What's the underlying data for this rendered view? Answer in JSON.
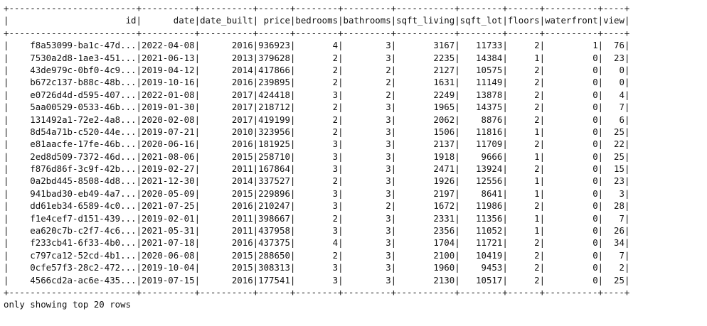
{
  "table": {
    "columns": [
      {
        "name": "id",
        "width": 24,
        "align": "right"
      },
      {
        "name": "date",
        "width": 10,
        "align": "right"
      },
      {
        "name": "date_built",
        "width": 10,
        "align": "right"
      },
      {
        "name": "price",
        "width": 6,
        "align": "right"
      },
      {
        "name": "bedrooms",
        "width": 8,
        "align": "right"
      },
      {
        "name": "bathrooms",
        "width": 9,
        "align": "right"
      },
      {
        "name": "sqft_living",
        "width": 11,
        "align": "right"
      },
      {
        "name": "sqft_lot",
        "width": 8,
        "align": "right"
      },
      {
        "name": "floors",
        "width": 6,
        "align": "right"
      },
      {
        "name": "waterfront",
        "width": 10,
        "align": "right"
      },
      {
        "name": "view",
        "width": 4,
        "align": "right"
      }
    ],
    "rows": [
      [
        "f8a53099-ba1c-47d...",
        "2022-04-08",
        "2016",
        "936923",
        "4",
        "3",
        "3167",
        "11733",
        "2",
        "1",
        "76"
      ],
      [
        "7530a2d8-1ae3-451...",
        "2021-06-13",
        "2013",
        "379628",
        "2",
        "3",
        "2235",
        "14384",
        "1",
        "0",
        "23"
      ],
      [
        "43de979c-0bf0-4c9...",
        "2019-04-12",
        "2014",
        "417866",
        "2",
        "2",
        "2127",
        "10575",
        "2",
        "0",
        "0"
      ],
      [
        "b672c137-b88c-48b...",
        "2019-10-16",
        "2016",
        "239895",
        "2",
        "2",
        "1631",
        "11149",
        "2",
        "0",
        "0"
      ],
      [
        "e0726d4d-d595-407...",
        "2022-01-08",
        "2017",
        "424418",
        "3",
        "2",
        "2249",
        "13878",
        "2",
        "0",
        "4"
      ],
      [
        "5aa00529-0533-46b...",
        "2019-01-30",
        "2017",
        "218712",
        "2",
        "3",
        "1965",
        "14375",
        "2",
        "0",
        "7"
      ],
      [
        "131492a1-72e2-4a8...",
        "2020-02-08",
        "2017",
        "419199",
        "2",
        "3",
        "2062",
        "8876",
        "2",
        "0",
        "6"
      ],
      [
        "8d54a71b-c520-44e...",
        "2019-07-21",
        "2010",
        "323956",
        "2",
        "3",
        "1506",
        "11816",
        "1",
        "0",
        "25"
      ],
      [
        "e81aacfe-17fe-46b...",
        "2020-06-16",
        "2016",
        "181925",
        "3",
        "3",
        "2137",
        "11709",
        "2",
        "0",
        "22"
      ],
      [
        "2ed8d509-7372-46d...",
        "2021-08-06",
        "2015",
        "258710",
        "3",
        "3",
        "1918",
        "9666",
        "1",
        "0",
        "25"
      ],
      [
        "f876d86f-3c9f-42b...",
        "2019-02-27",
        "2011",
        "167864",
        "3",
        "3",
        "2471",
        "13924",
        "2",
        "0",
        "15"
      ],
      [
        "0a2bd445-8508-4d8...",
        "2021-12-30",
        "2014",
        "337527",
        "2",
        "3",
        "1926",
        "12556",
        "1",
        "0",
        "23"
      ],
      [
        "941bad30-eb49-4a7...",
        "2020-05-09",
        "2015",
        "229896",
        "3",
        "3",
        "2197",
        "8641",
        "1",
        "0",
        "3"
      ],
      [
        "dd61eb34-6589-4c0...",
        "2021-07-25",
        "2016",
        "210247",
        "3",
        "2",
        "1672",
        "11986",
        "2",
        "0",
        "28"
      ],
      [
        "f1e4cef7-d151-439...",
        "2019-02-01",
        "2011",
        "398667",
        "2",
        "3",
        "2331",
        "11356",
        "1",
        "0",
        "7"
      ],
      [
        "ea620c7b-c2f7-4c6...",
        "2021-05-31",
        "2011",
        "437958",
        "3",
        "3",
        "2356",
        "11052",
        "1",
        "0",
        "26"
      ],
      [
        "f233cb41-6f33-4b0...",
        "2021-07-18",
        "2016",
        "437375",
        "4",
        "3",
        "1704",
        "11721",
        "2",
        "0",
        "34"
      ],
      [
        "c797ca12-52cd-4b1...",
        "2020-06-08",
        "2015",
        "288650",
        "2",
        "3",
        "2100",
        "10419",
        "2",
        "0",
        "7"
      ],
      [
        "0cfe57f3-28c2-472...",
        "2019-10-04",
        "2015",
        "308313",
        "3",
        "3",
        "1960",
        "9453",
        "2",
        "0",
        "2"
      ],
      [
        "4566cd2a-ac6e-435...",
        "2019-07-15",
        "2016",
        "177541",
        "3",
        "3",
        "2130",
        "10517",
        "2",
        "0",
        "25"
      ]
    ]
  },
  "footer_text": "only showing top 20 rows",
  "colors": {
    "text": "#111111",
    "background": "#ffffff"
  }
}
